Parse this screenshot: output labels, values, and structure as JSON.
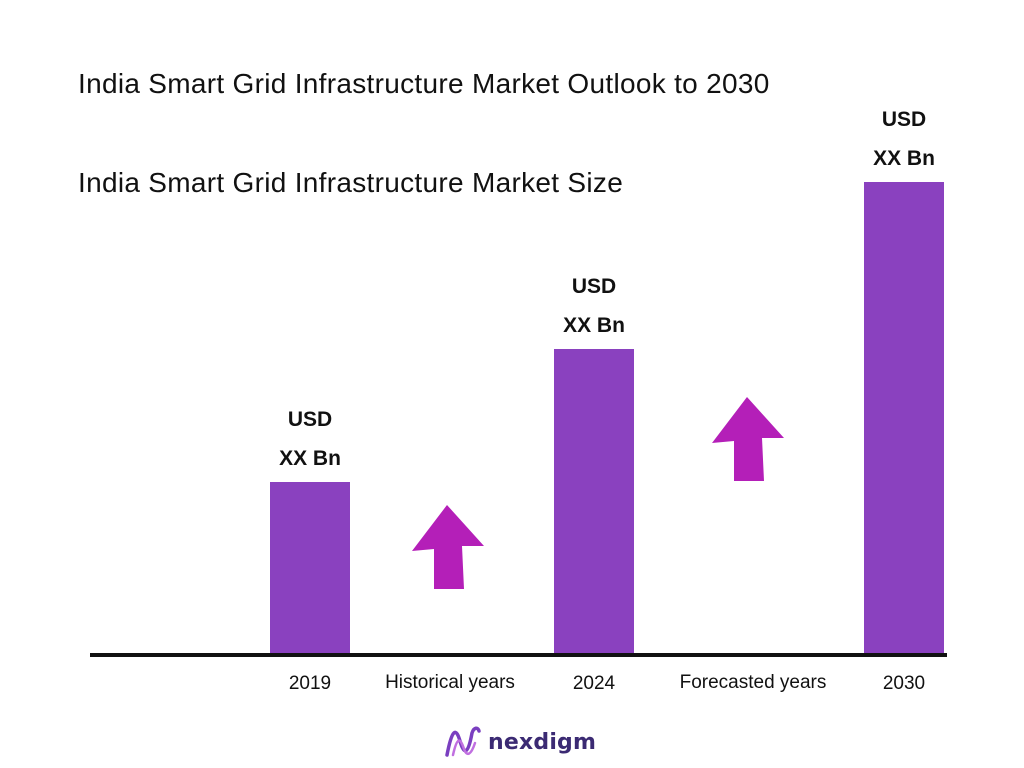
{
  "chart_data": {
    "type": "bar",
    "title": "India Smart Grid Infrastructure Market Outlook to 2030",
    "subtitle": "India Smart Grid Infrastructure Market Size",
    "categories": [
      "2019",
      "2024",
      "2030"
    ],
    "values": [
      1.0,
      1.77,
      2.74
    ],
    "value_labels": [
      {
        "line1": "USD",
        "line2": "XX Bn"
      },
      {
        "line1": "USD",
        "line2": "XX Bn"
      },
      {
        "line1": "USD",
        "line2": "XX Bn"
      }
    ],
    "period_labels": [
      "Historical years",
      "Forecasted years"
    ],
    "ylim": [
      0,
      2.9
    ],
    "grid": false,
    "bar_color": "#8a41bf",
    "arrow_color": "#b41fb8"
  },
  "brand": {
    "name": "nexdigm",
    "logo_icon": "nexdigm-logo-icon",
    "logo_color": "#7a3fc0"
  }
}
